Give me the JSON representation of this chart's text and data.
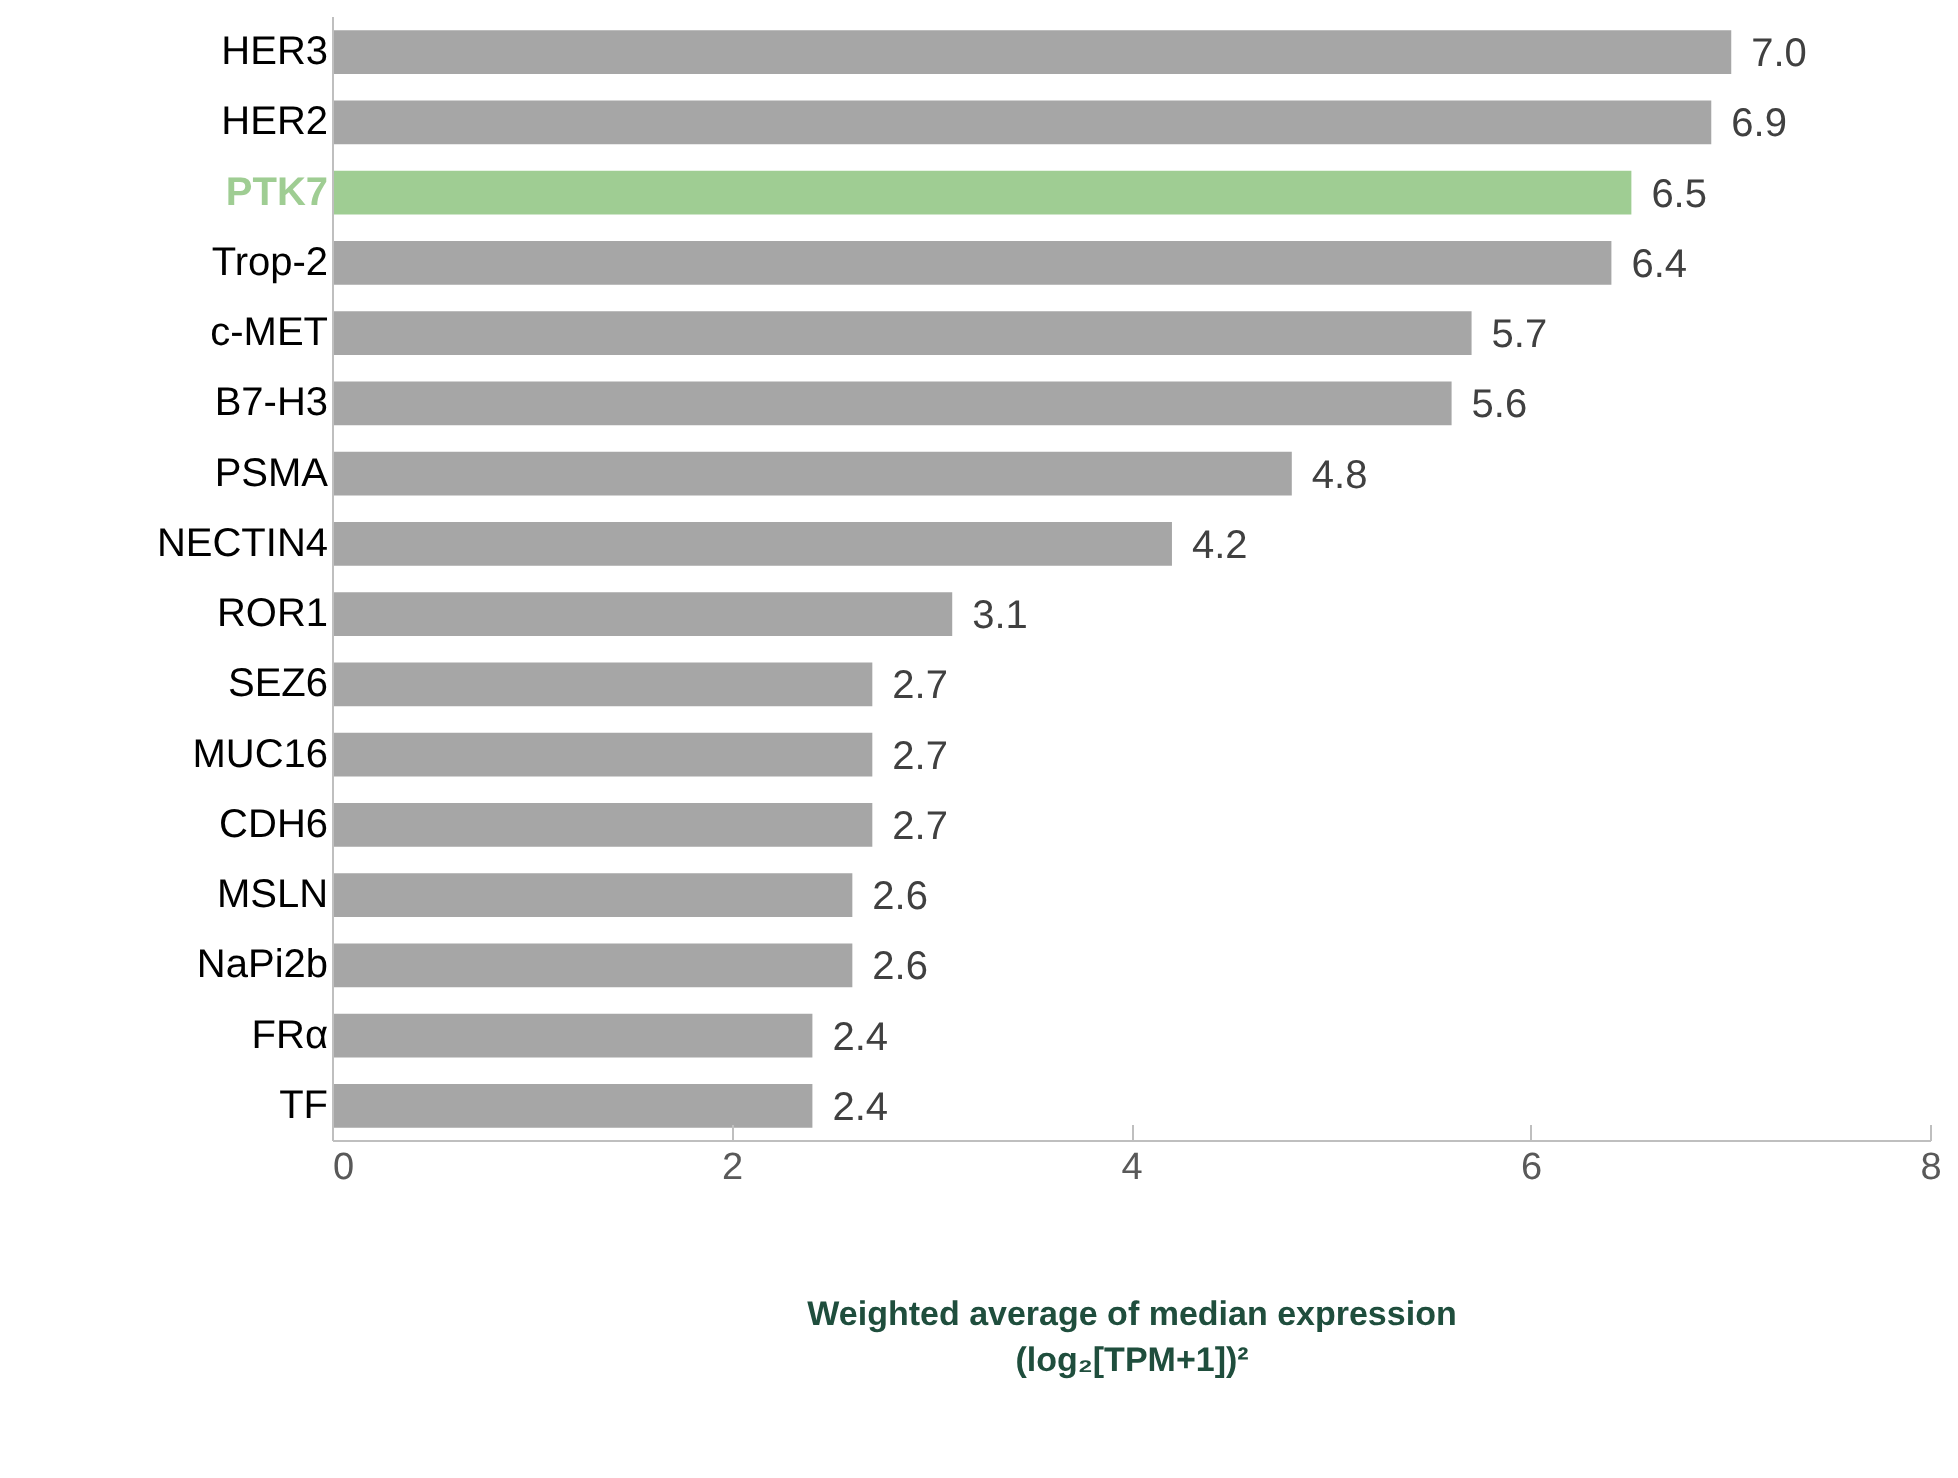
{
  "chart_data": {
    "type": "bar",
    "orientation": "horizontal",
    "xlabel": "Weighted average of median expression\n(log₂[TPM+1])²",
    "categories": [
      "HER3",
      "HER2",
      "PTK7",
      "Trop-2",
      "c-MET",
      "B7-H3",
      "PSMA",
      "NECTIN4",
      "ROR1",
      "SEZ6",
      "MUC16",
      "CDH6",
      "MSLN",
      "NaPi2b",
      "FRα",
      "TF"
    ],
    "values": [
      7.0,
      6.9,
      6.5,
      6.4,
      5.7,
      5.6,
      4.8,
      4.2,
      3.1,
      2.7,
      2.7,
      2.7,
      2.6,
      2.6,
      2.4,
      2.4
    ],
    "colors": [
      "#a6a6a6",
      "#a6a6a6",
      "#9fcd93",
      "#a6a6a6",
      "#a6a6a6",
      "#a6a6a6",
      "#a6a6a6",
      "#a6a6a6",
      "#a6a6a6",
      "#a6a6a6",
      "#a6a6a6",
      "#a6a6a6",
      "#a6a6a6",
      "#a6a6a6",
      "#a6a6a6",
      "#a6a6a6"
    ],
    "value_labels": [
      "7.0",
      "6.9",
      "6.5",
      "6.4",
      "5.7",
      "5.6",
      "4.8",
      "4.2",
      "3.1",
      "2.7",
      "2.7",
      "2.7",
      "2.6",
      "2.6",
      "2.4",
      "2.4"
    ],
    "xlim": [
      0,
      8
    ],
    "xticks": [
      0,
      2,
      4,
      6,
      8
    ],
    "grid": false
  }
}
